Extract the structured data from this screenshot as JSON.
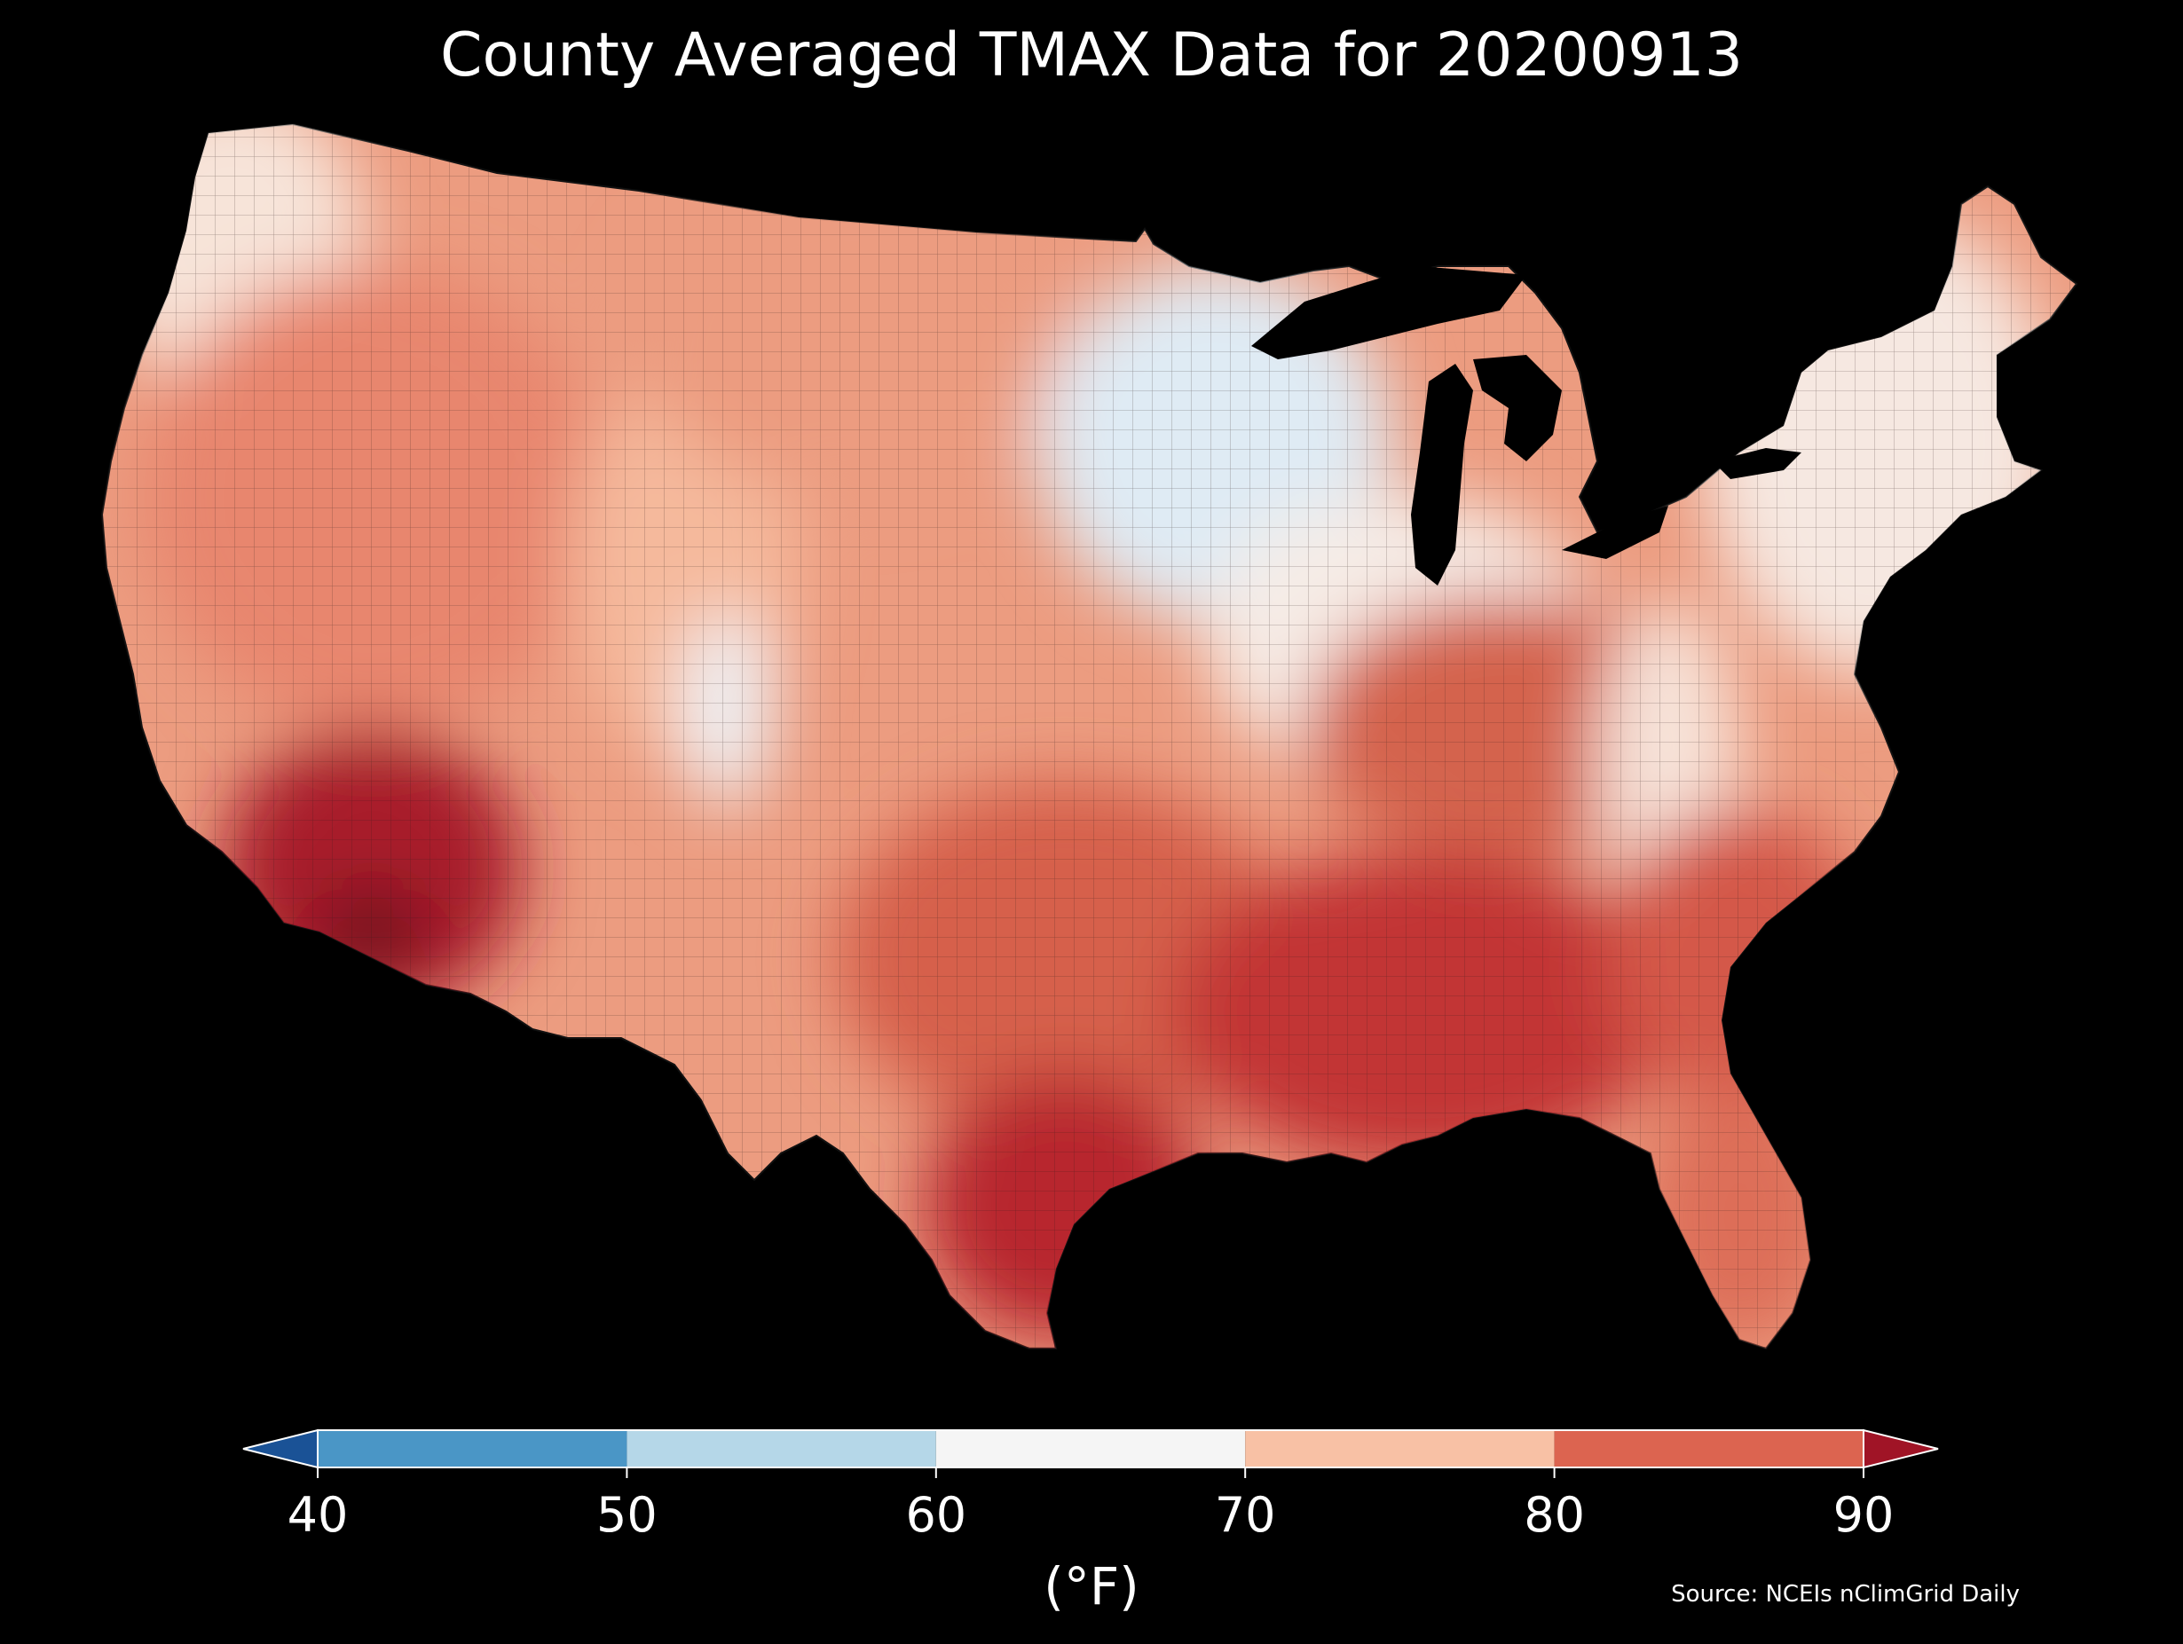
{
  "title": "County Averaged TMAX Data for 20200913",
  "source": "Source: NCEIs nClimGrid Daily",
  "colorbar": {
    "unit": "(°F)",
    "ticks": [
      "40",
      "50",
      "60",
      "70",
      "80",
      "90"
    ],
    "bins": [
      {
        "range": "<40",
        "color": "#1a5296"
      },
      {
        "range": "40-50",
        "color": "#4a96c6"
      },
      {
        "range": "50-60",
        "color": "#b5d7e8"
      },
      {
        "range": "60-70",
        "color": "#f5f5f5"
      },
      {
        "range": "70-80",
        "color": "#f8c1a5"
      },
      {
        "range": "80-90",
        "color": "#dc6450"
      },
      {
        "range": ">90",
        "color": "#a01426"
      }
    ]
  },
  "map": {
    "region": "Contiguous United States",
    "background": "#000000",
    "county_borders_color": "#222222",
    "regional_fill": {
      "pacific-northwest": "#f7e4d9",
      "west": "#e8866e",
      "desert-southwest": "#a81a2a",
      "extreme-low-desert": "#6e0a1c",
      "great-basin-interior": "#f5b99c",
      "wasatch-utah": "#eef3f7",
      "northern-plains": "#ec9c80",
      "upper-midwest": "#dfebf4",
      "midwest": "#f6ece6",
      "great-lakes": "#000000",
      "ohio-valley": "#d4644e",
      "appalachia": "#f7e3d9",
      "northeast": "#f6e8e1",
      "south-central": "#d6604b",
      "deep-south": "#c23436",
      "gulf-coast-texas": "#b8262e",
      "southeast-coast": "#d4584a",
      "florida": "#dd6e58"
    }
  }
}
